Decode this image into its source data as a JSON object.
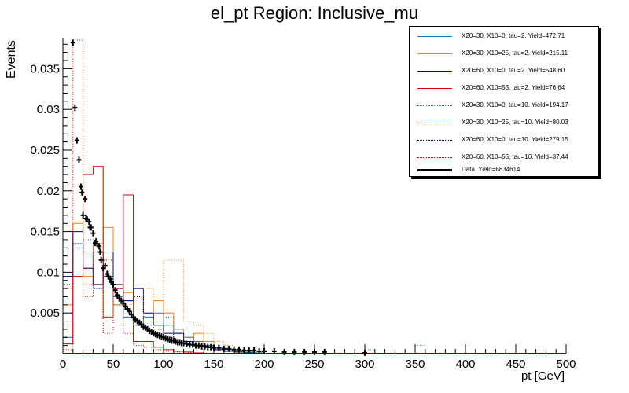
{
  "chart_data": {
    "type": "histogram",
    "title": "el_pt Region: Inclusive_mu",
    "xlabel": "pt [GeV]",
    "ylabel": "Events",
    "xlim": [
      0,
      500
    ],
    "ylim": [
      0,
      0.0388
    ],
    "x_ticks": [
      "0",
      "50",
      "100",
      "150",
      "200",
      "250",
      "300",
      "350",
      "400",
      "450",
      "500"
    ],
    "y_ticks": [
      "0.005",
      "0.01",
      "0.015",
      "0.02",
      "0.025",
      "0.03",
      "0.035"
    ],
    "bin_width": 10,
    "series": [
      {
        "name": "X20=30, X10=0, tau=2. Yield=472.71",
        "color": "#1f77b4",
        "style": "solid",
        "values": [
          0.002,
          0.0135,
          0.0125,
          0.0085,
          0.0095,
          0.007,
          0.0045,
          0.0035,
          0.0045,
          0.005,
          0.0035,
          0.0025,
          0.002,
          0.0015,
          0.001,
          0.0008,
          0.0005,
          0.0003,
          0.0002,
          0.0001
        ]
      },
      {
        "name": "X20=30, X10=25, tau=2. Yield=215.11",
        "color": "#ff7f0e",
        "style": "solid",
        "values": [
          0.006,
          0.016,
          0.0095,
          0.0135,
          0.0155,
          0.006,
          0.0075,
          0.004,
          0.004,
          0.0065,
          0.005,
          0.003,
          0.002,
          0.0025,
          0.0015,
          0.0005,
          0.0003,
          0.0002,
          0.0001,
          0.0
        ]
      },
      {
        "name": "X20=60, X10=0, tau=2. Yield=548.60",
        "color": "#00006e",
        "style": "solid",
        "values": [
          0.0095,
          0.015,
          0.0105,
          0.0085,
          0.0125,
          0.0085,
          0.0065,
          0.008,
          0.005,
          0.0035,
          0.0025,
          0.0025,
          0.0015,
          0.001,
          0.0008,
          0.0005,
          0.0003,
          0.0002,
          0.0001,
          0.0
        ]
      },
      {
        "name": "X20=60, X10=55, tau=2. Yield=76.64",
        "color": "#cc0000",
        "style": "solid",
        "values": [
          0.0012,
          0.0095,
          0.022,
          0.023,
          0.0045,
          0.008,
          0.0195,
          0.0015,
          0.0015,
          0.0008,
          0.0005,
          0.0003,
          0.0002,
          0.0001,
          0.0,
          0.0,
          0.0,
          0.0,
          0.0,
          0.0
        ]
      },
      {
        "name": "X20=30, X10=0, tau=10. Yield=194.17",
        "color": "#1f77b4",
        "style": "dotted",
        "values": [
          0.004,
          0.013,
          0.014,
          0.008,
          0.0095,
          0.006,
          0.0045,
          0.0035,
          0.0045,
          0.0035,
          0.0045,
          0.0025,
          0.002,
          0.0015,
          0.001,
          0.0008,
          0.0005,
          0.0003,
          0.0002,
          0.0001,
          0.0,
          0.0,
          0.0,
          0.0,
          0.0,
          0.0,
          0.0,
          0.0,
          0.0,
          0.0,
          0.0005,
          0.0,
          0.0,
          0.0,
          0.0,
          0.001
        ]
      },
      {
        "name": "X20=30, X10=25, tau=10. Yield=80.03",
        "color": "#ff7f0e",
        "style": "dotted",
        "values": [
          0.008,
          0.0135,
          0.0085,
          0.0085,
          0.0045,
          0.0085,
          0.006,
          0.0035,
          0.008,
          0.004,
          0.0115,
          0.0115,
          0.004,
          0.0035,
          0.0025,
          0.0015,
          0.001,
          0.0005,
          0.0003,
          0.0002,
          0.0
        ]
      },
      {
        "name": "X20=60, X10=0, tau=10. Yield=279.15",
        "color": "#00006e",
        "style": "dotted",
        "values": [
          0.0085,
          0.0135,
          0.0105,
          0.008,
          0.0115,
          0.008,
          0.0065,
          0.007,
          0.0035,
          0.003,
          0.002,
          0.0025,
          0.0015,
          0.001,
          0.0008,
          0.0005,
          0.0003,
          0.0002,
          0.0001,
          0.0
        ]
      },
      {
        "name": "X20=60, X10=55, tau=10. Yield=37.44",
        "color": "#cc0000",
        "style": "dotted",
        "values": [
          0.0005,
          0.0385,
          0.007,
          0.0125,
          0.0025,
          0.0085,
          0.0025,
          0.001,
          0.0008,
          0.0005,
          0.0003,
          0.0002,
          0.0001,
          0.0,
          0.0,
          0.0,
          0.0,
          0.0,
          0.0,
          0.0
        ]
      }
    ],
    "data_series": {
      "name": "Data. Yield=6834614",
      "color": "#000000",
      "points": [
        [
          10,
          0.0382
        ],
        [
          12,
          0.0302
        ],
        [
          14,
          0.0262
        ],
        [
          16,
          0.0238
        ],
        [
          18,
          0.0205
        ],
        [
          19,
          0.0198
        ],
        [
          20,
          0.017
        ],
        [
          22,
          0.019
        ],
        [
          23,
          0.0166
        ],
        [
          24,
          0.0165
        ],
        [
          26,
          0.0162
        ],
        [
          27,
          0.0155
        ],
        [
          28,
          0.0155
        ],
        [
          30,
          0.0148
        ],
        [
          32,
          0.0136
        ],
        [
          33,
          0.0138
        ],
        [
          34,
          0.0135
        ],
        [
          36,
          0.0132
        ],
        [
          37,
          0.0125
        ],
        [
          38,
          0.0115
        ],
        [
          40,
          0.0105
        ],
        [
          42,
          0.0108
        ],
        [
          44,
          0.0098
        ],
        [
          45,
          0.0095
        ],
        [
          47,
          0.0092
        ],
        [
          48,
          0.0088
        ],
        [
          50,
          0.0085
        ],
        [
          52,
          0.0078
        ],
        [
          54,
          0.0072
        ],
        [
          56,
          0.0068
        ],
        [
          58,
          0.0065
        ],
        [
          60,
          0.0062
        ],
        [
          62,
          0.0058
        ],
        [
          64,
          0.0055
        ],
        [
          66,
          0.0052
        ],
        [
          68,
          0.0048
        ],
        [
          70,
          0.0045
        ],
        [
          72,
          0.0042
        ],
        [
          74,
          0.004
        ],
        [
          76,
          0.0038
        ],
        [
          78,
          0.0036
        ],
        [
          80,
          0.0033
        ],
        [
          82,
          0.0032
        ],
        [
          84,
          0.003
        ],
        [
          86,
          0.0028
        ],
        [
          88,
          0.0027
        ],
        [
          90,
          0.0025
        ],
        [
          92,
          0.0024
        ],
        [
          94,
          0.0023
        ],
        [
          96,
          0.0022
        ],
        [
          98,
          0.0021
        ],
        [
          100,
          0.002
        ],
        [
          102,
          0.0019
        ],
        [
          104,
          0.0018
        ],
        [
          106,
          0.0017
        ],
        [
          108,
          0.0016
        ],
        [
          110,
          0.0016
        ],
        [
          112,
          0.0015
        ],
        [
          114,
          0.0014
        ],
        [
          116,
          0.0014
        ],
        [
          118,
          0.0013
        ],
        [
          120,
          0.0013
        ],
        [
          123,
          0.0012
        ],
        [
          126,
          0.0011
        ],
        [
          129,
          0.0011
        ],
        [
          132,
          0.001
        ],
        [
          135,
          0.001
        ],
        [
          138,
          0.0009
        ],
        [
          141,
          0.0009
        ],
        [
          144,
          0.0008
        ],
        [
          147,
          0.0008
        ],
        [
          150,
          0.0007
        ],
        [
          155,
          0.0007
        ],
        [
          160,
          0.0006
        ],
        [
          165,
          0.0006
        ],
        [
          170,
          0.0005
        ],
        [
          175,
          0.0005
        ],
        [
          180,
          0.0004
        ],
        [
          185,
          0.0004
        ],
        [
          190,
          0.0004
        ],
        [
          195,
          0.0003
        ],
        [
          200,
          0.0003
        ],
        [
          210,
          0.0003
        ],
        [
          220,
          0.0002
        ],
        [
          230,
          0.0002
        ],
        [
          240,
          0.0002
        ],
        [
          250,
          0.0002
        ],
        [
          260,
          0.0002
        ],
        [
          300,
          0.0001
        ]
      ]
    }
  }
}
